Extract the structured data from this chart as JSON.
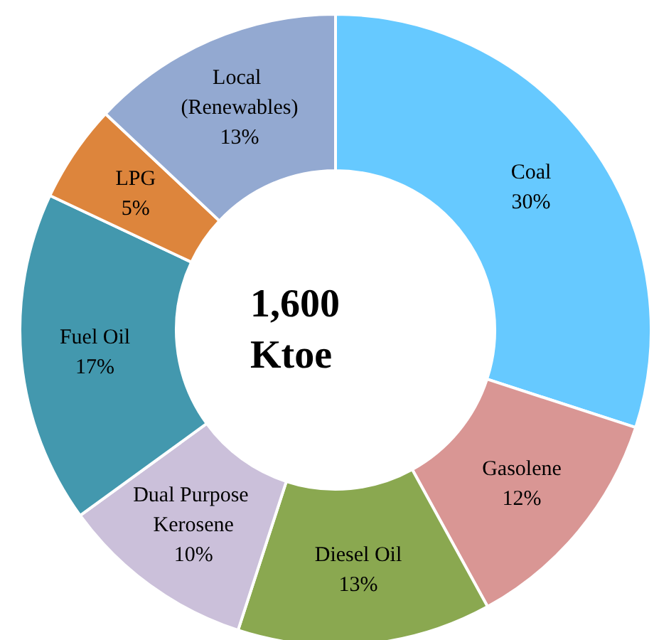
{
  "chart_data": {
    "type": "donut",
    "title": "1,600 Ktoe",
    "categories": [
      "Coal",
      "Gasolene",
      "Diesel Oil",
      "Dual Purpose Kerosene",
      "Fuel Oil",
      "LPG",
      "Local (Renewables)"
    ],
    "values": [
      30,
      12,
      13,
      10,
      17,
      5,
      13
    ],
    "value_labels": [
      "30%",
      "12%",
      "13%",
      "10%",
      "17%",
      "5%",
      "13%"
    ],
    "colors": [
      "#66c9ff",
      "#d99694",
      "#8aa850",
      "#cbc0da",
      "#4398ae",
      "#dd853c",
      "#93a9d1"
    ],
    "legend": false
  }
}
